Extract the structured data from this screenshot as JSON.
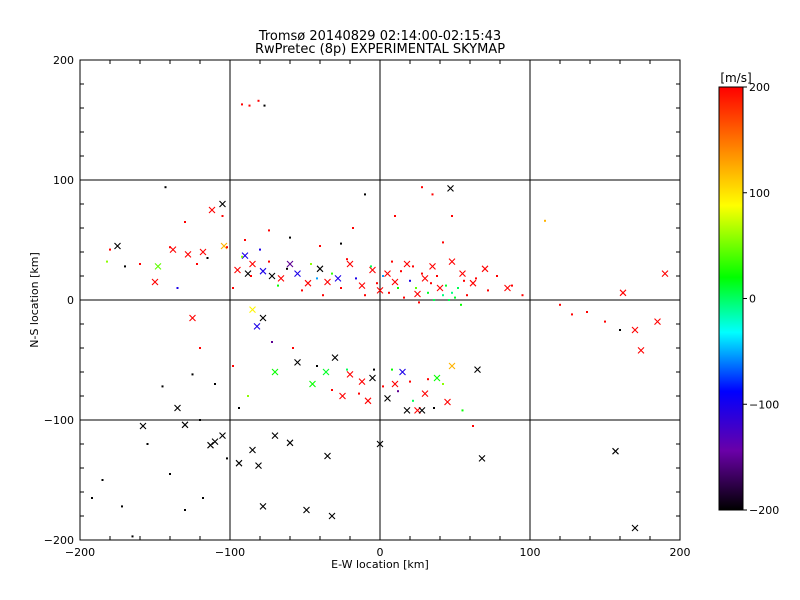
{
  "chart_data": {
    "type": "scatter",
    "title": "Tromsø 20140829 02:14:00-02:15:43",
    "subtitle": "RwPretec (8p) EXPERIMENTAL SKYMAP",
    "xlabel": "E-W location [km]",
    "ylabel": "N-S location [km]",
    "xlim": [
      -200,
      200
    ],
    "ylim": [
      -200,
      200
    ],
    "xticks": [
      -200,
      -100,
      0,
      100,
      200
    ],
    "yticks": [
      -200,
      -100,
      0,
      100,
      200
    ],
    "grid": true,
    "colorbar": {
      "label": "[m/s]",
      "range": [
        -200,
        200
      ],
      "ticks": [
        "200",
        "100",
        "0",
        "−100",
        "−200"
      ],
      "colors": [
        "#000000",
        "#6a00a8",
        "#0000ff",
        "#00ffff",
        "#00ff00",
        "#ffff00",
        "#ff8000",
        "#ff0000"
      ]
    },
    "series": [
      {
        "marker": "x",
        "points": [
          [
            -175,
            45,
            -200
          ],
          [
            -148,
            28,
            50
          ],
          [
            -138,
            42,
            200
          ],
          [
            -128,
            38,
            200
          ],
          [
            -118,
            40,
            200
          ],
          [
            -112,
            75,
            200
          ],
          [
            -105,
            80,
            -200
          ],
          [
            -104,
            45,
            120
          ],
          [
            -95,
            25,
            200
          ],
          [
            -90,
            37,
            -100
          ],
          [
            -88,
            22,
            -200
          ],
          [
            -85,
            30,
            200
          ],
          [
            -78,
            24,
            -100
          ],
          [
            -72,
            20,
            -200
          ],
          [
            -66,
            18,
            200
          ],
          [
            -60,
            30,
            -150
          ],
          [
            -55,
            22,
            -100
          ],
          [
            -48,
            14,
            200
          ],
          [
            -40,
            26,
            -200
          ],
          [
            -35,
            15,
            200
          ],
          [
            -28,
            18,
            -100
          ],
          [
            -20,
            30,
            200
          ],
          [
            -12,
            12,
            200
          ],
          [
            -5,
            25,
            200
          ],
          [
            0,
            8,
            200
          ],
          [
            5,
            22,
            200
          ],
          [
            10,
            15,
            200
          ],
          [
            18,
            30,
            200
          ],
          [
            25,
            5,
            200
          ],
          [
            30,
            18,
            200
          ],
          [
            35,
            28,
            200
          ],
          [
            40,
            10,
            200
          ],
          [
            48,
            32,
            200
          ],
          [
            55,
            22,
            200
          ],
          [
            62,
            14,
            200
          ],
          [
            70,
            26,
            200
          ],
          [
            85,
            10,
            200
          ],
          [
            47,
            93,
            -200
          ],
          [
            -150,
            15,
            200
          ],
          [
            -125,
            -15,
            200
          ],
          [
            -78,
            -15,
            -200
          ],
          [
            -82,
            -22,
            -100
          ],
          [
            -70,
            -60,
            30
          ],
          [
            -55,
            -52,
            -200
          ],
          [
            -45,
            -70,
            30
          ],
          [
            -36,
            -60,
            20
          ],
          [
            -30,
            -48,
            -200
          ],
          [
            -20,
            -62,
            200
          ],
          [
            -12,
            -68,
            200
          ],
          [
            -5,
            -65,
            -200
          ],
          [
            -25,
            -80,
            200
          ],
          [
            -8,
            -84,
            200
          ],
          [
            5,
            -82,
            -200
          ],
          [
            10,
            -70,
            200
          ],
          [
            15,
            -60,
            -100
          ],
          [
            18,
            -92,
            -200
          ],
          [
            25,
            -92,
            200
          ],
          [
            30,
            -78,
            200
          ],
          [
            38,
            -65,
            30
          ],
          [
            45,
            -85,
            200
          ],
          [
            48,
            -55,
            120
          ],
          [
            65,
            -58,
            -200
          ],
          [
            28,
            -92,
            -200
          ],
          [
            -158,
            -105,
            -200
          ],
          [
            -135,
            -90,
            -200
          ],
          [
            -130,
            -104,
            -200
          ],
          [
            -113,
            -121,
            -200
          ],
          [
            -110,
            -118,
            -200
          ],
          [
            -105,
            -113,
            -200
          ],
          [
            -94,
            -136,
            -200
          ],
          [
            -85,
            -125,
            -200
          ],
          [
            -81,
            -138,
            -200
          ],
          [
            -70,
            -113,
            -200
          ],
          [
            -60,
            -119,
            -200
          ],
          [
            -35,
            -130,
            -200
          ],
          [
            0,
            -120,
            -200
          ],
          [
            -78,
            -172,
            -200
          ],
          [
            -49,
            -175,
            -200
          ],
          [
            -32,
            -180,
            -200
          ],
          [
            68,
            -132,
            -200
          ],
          [
            157,
            -126,
            -200
          ],
          [
            170,
            -190,
            -200
          ],
          [
            162,
            6,
            200
          ],
          [
            170,
            -25,
            200
          ],
          [
            174,
            -42,
            200
          ],
          [
            190,
            22,
            200
          ],
          [
            185,
            -18,
            200
          ],
          [
            -85,
            -8,
            90
          ]
        ]
      },
      {
        "marker": "dot",
        "points": [
          [
            -180,
            42,
            200
          ],
          [
            -170,
            28,
            -200
          ],
          [
            -160,
            30,
            200
          ],
          [
            -140,
            44,
            200
          ],
          [
            -122,
            30,
            200
          ],
          [
            -115,
            35,
            -200
          ],
          [
            -102,
            44,
            200
          ],
          [
            -98,
            10,
            200
          ],
          [
            -92,
            36,
            60
          ],
          [
            -86,
            20,
            200
          ],
          [
            -80,
            42,
            -100
          ],
          [
            -74,
            32,
            200
          ],
          [
            -68,
            12,
            30
          ],
          [
            -62,
            26,
            -200
          ],
          [
            -52,
            8,
            200
          ],
          [
            -46,
            30,
            60
          ],
          [
            -42,
            18,
            -50
          ],
          [
            -38,
            4,
            200
          ],
          [
            -32,
            22,
            40
          ],
          [
            -26,
            10,
            200
          ],
          [
            -22,
            34,
            200
          ],
          [
            -16,
            18,
            -100
          ],
          [
            -10,
            4,
            200
          ],
          [
            -6,
            28,
            10
          ],
          [
            -2,
            14,
            200
          ],
          [
            2,
            20,
            -50
          ],
          [
            6,
            6,
            200
          ],
          [
            8,
            32,
            200
          ],
          [
            12,
            10,
            30
          ],
          [
            14,
            24,
            200
          ],
          [
            16,
            2,
            200
          ],
          [
            20,
            16,
            -100
          ],
          [
            22,
            28,
            200
          ],
          [
            24,
            10,
            50
          ],
          [
            26,
            -2,
            200
          ],
          [
            28,
            22,
            200
          ],
          [
            32,
            6,
            20
          ],
          [
            34,
            14,
            200
          ],
          [
            36,
            0,
            10
          ],
          [
            38,
            20,
            200
          ],
          [
            42,
            4,
            0
          ],
          [
            44,
            12,
            20
          ],
          [
            46,
            0,
            10
          ],
          [
            48,
            6,
            0
          ],
          [
            50,
            2,
            20
          ],
          [
            52,
            10,
            10
          ],
          [
            54,
            -4,
            30
          ],
          [
            56,
            16,
            200
          ],
          [
            58,
            4,
            200
          ],
          [
            64,
            18,
            200
          ],
          [
            72,
            8,
            200
          ],
          [
            78,
            20,
            200
          ],
          [
            88,
            12,
            200
          ],
          [
            95,
            4,
            200
          ],
          [
            110,
            66,
            120
          ],
          [
            120,
            -4,
            200
          ],
          [
            128,
            -12,
            200
          ],
          [
            138,
            -10,
            200
          ],
          [
            150,
            -18,
            200
          ],
          [
            160,
            -25,
            -200
          ],
          [
            -182,
            32,
            60
          ],
          [
            -135,
            10,
            -100
          ],
          [
            -120,
            -40,
            200
          ],
          [
            -110,
            -70,
            -200
          ],
          [
            -98,
            -55,
            200
          ],
          [
            -94,
            -90,
            -200
          ],
          [
            -88,
            -80,
            60
          ],
          [
            -72,
            -35,
            -150
          ],
          [
            -58,
            -40,
            200
          ],
          [
            -42,
            -55,
            -200
          ],
          [
            -32,
            -75,
            200
          ],
          [
            -22,
            -58,
            10
          ],
          [
            -14,
            -78,
            200
          ],
          [
            -4,
            -58,
            -200
          ],
          [
            2,
            -72,
            200
          ],
          [
            8,
            -58,
            30
          ],
          [
            12,
            -76,
            -150
          ],
          [
            20,
            -68,
            200
          ],
          [
            22,
            -84,
            10
          ],
          [
            32,
            -66,
            200
          ],
          [
            36,
            -90,
            -200
          ],
          [
            42,
            -70,
            60
          ],
          [
            55,
            -92,
            30
          ],
          [
            62,
            -105,
            200
          ],
          [
            -145,
            -72,
            -200
          ],
          [
            -125,
            -62,
            -200
          ],
          [
            -120,
            -100,
            -200
          ],
          [
            -102,
            -132,
            -200
          ],
          [
            -140,
            -145,
            -200
          ],
          [
            -172,
            -172,
            -200
          ],
          [
            -130,
            -175,
            -200
          ],
          [
            -118,
            -165,
            -200
          ],
          [
            -185,
            -150,
            -200
          ],
          [
            -192,
            -165,
            -200
          ],
          [
            -165,
            -197,
            -200
          ],
          [
            -155,
            -120,
            -200
          ],
          [
            -87,
            162,
            200
          ],
          [
            -92,
            163,
            200
          ],
          [
            -77,
            162,
            -200
          ],
          [
            -81,
            166,
            200
          ],
          [
            -143,
            94,
            -200
          ],
          [
            -130,
            65,
            200
          ],
          [
            -105,
            70,
            200
          ],
          [
            -90,
            50,
            200
          ],
          [
            -60,
            52,
            -200
          ],
          [
            -40,
            45,
            200
          ],
          [
            -26,
            47,
            -200
          ],
          [
            -18,
            60,
            200
          ],
          [
            -10,
            88,
            -200
          ],
          [
            10,
            70,
            200
          ],
          [
            28,
            94,
            200
          ],
          [
            35,
            88,
            200
          ],
          [
            42,
            48,
            200
          ],
          [
            48,
            70,
            200
          ],
          [
            -74,
            58,
            200
          ]
        ]
      }
    ]
  }
}
